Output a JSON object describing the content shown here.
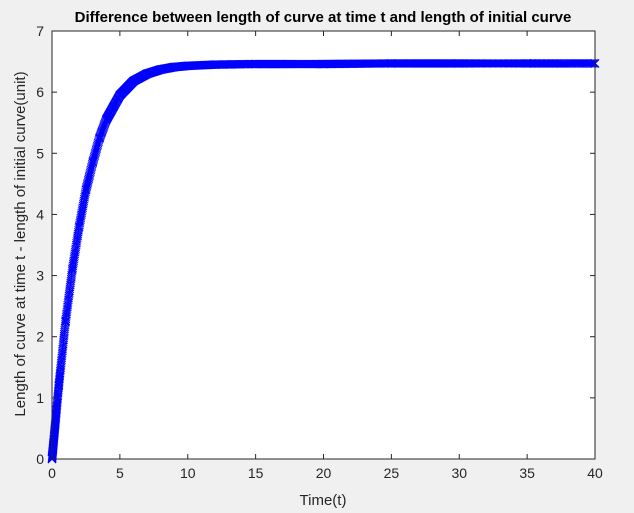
{
  "chart_data": {
    "type": "line",
    "title": "Difference between length of curve at time t and length of initial curve",
    "xlabel": "Time(t)",
    "ylabel": "Length of curve at time t - length of initial curve(unit)",
    "xlim": [
      0,
      40
    ],
    "ylim": [
      0,
      7
    ],
    "xticks": [
      0,
      5,
      10,
      15,
      20,
      25,
      30,
      35,
      40
    ],
    "yticks": [
      0,
      1,
      2,
      3,
      4,
      5,
      6,
      7
    ],
    "grid": false,
    "marker": "x",
    "line_color": "#0000ff",
    "series": [
      {
        "x": [
          0,
          0.5,
          1,
          1.5,
          2,
          2.5,
          3,
          3.5,
          4,
          5,
          6,
          7,
          8,
          9,
          10,
          12,
          15,
          20,
          25,
          30,
          35,
          40
        ],
        "values": [
          0,
          1.2,
          2.25,
          3.1,
          3.8,
          4.4,
          4.85,
          5.25,
          5.55,
          5.95,
          6.18,
          6.3,
          6.37,
          6.41,
          6.43,
          6.45,
          6.46,
          6.46,
          6.47,
          6.47,
          6.47,
          6.47
        ]
      }
    ]
  }
}
